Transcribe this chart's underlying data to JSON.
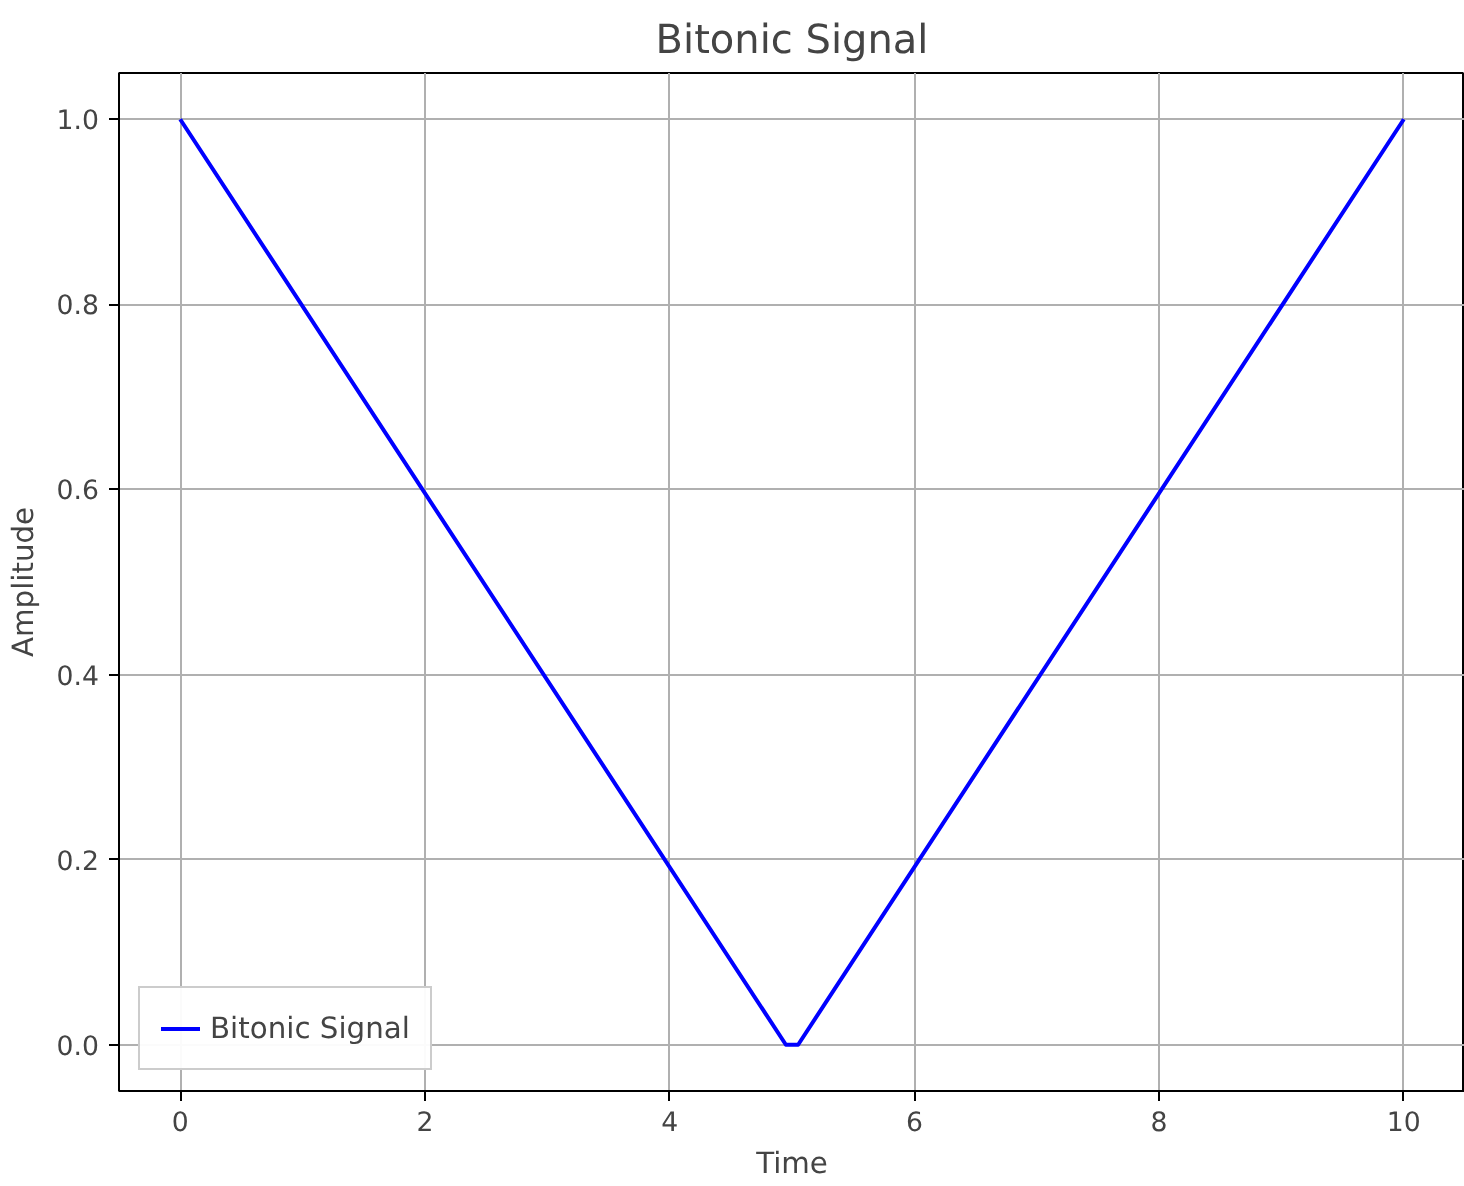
{
  "chart_data": {
    "type": "line",
    "title": "Bitonic Signal",
    "xlabel": "Time",
    "ylabel": "Amplitude",
    "series": [
      {
        "name": "Bitonic Signal",
        "color": "#0000ff",
        "x": [
          0,
          4.95,
          5.05,
          10
        ],
        "values": [
          1,
          0,
          0,
          1
        ]
      }
    ],
    "xlim": [
      -0.5,
      10.5
    ],
    "ylim": [
      -0.05,
      1.05
    ],
    "xticks": [
      0,
      2,
      4,
      6,
      8,
      10
    ],
    "yticks": [
      {
        "value": 0,
        "label": "0.0"
      },
      {
        "value": 0.2,
        "label": "0.2"
      },
      {
        "value": 0.4,
        "label": "0.4"
      },
      {
        "value": 0.6,
        "label": "0.6"
      },
      {
        "value": 0.8,
        "label": "0.8"
      },
      {
        "value": 1,
        "label": "1.0"
      }
    ],
    "grid": true,
    "legend": "bottom left",
    "marker": "none",
    "line_style": "solid"
  }
}
